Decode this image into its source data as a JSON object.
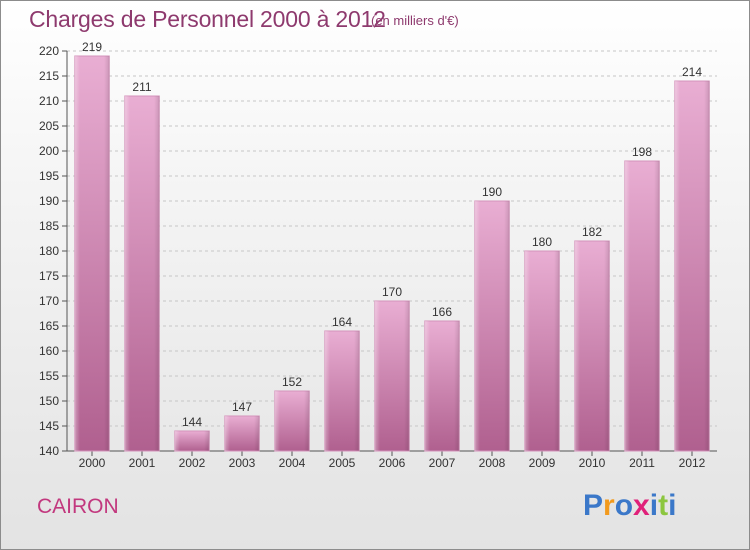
{
  "header": {
    "title": "Charges de Personnel 2000 à 2012",
    "subtitle": "(en milliers d'€)"
  },
  "footer": {
    "commune": "CAIRON",
    "brand": "Proxiti"
  },
  "colors": {
    "title": "#8e3a6e",
    "commune": "#c2387e",
    "bar_light": "#e9aed3",
    "bar_dark": "#b0608f",
    "brand_letters": [
      "#3b78c9",
      "#f29a1d",
      "#3b78c9",
      "#e0217a",
      "#3b78c9",
      "#8cc63f",
      "#3b78c9"
    ]
  },
  "chart_data": {
    "type": "bar",
    "categories": [
      "2000",
      "2001",
      "2002",
      "2003",
      "2004",
      "2005",
      "2006",
      "2007",
      "2008",
      "2009",
      "2010",
      "2011",
      "2012"
    ],
    "values": [
      219,
      211,
      144,
      147,
      152,
      164,
      170,
      166,
      190,
      180,
      182,
      198,
      214
    ],
    "ylim": [
      140,
      220
    ],
    "yticks": [
      140,
      145,
      150,
      155,
      160,
      165,
      170,
      175,
      180,
      185,
      190,
      195,
      200,
      205,
      210,
      215,
      220
    ],
    "grid": true,
    "data_labels": true
  }
}
